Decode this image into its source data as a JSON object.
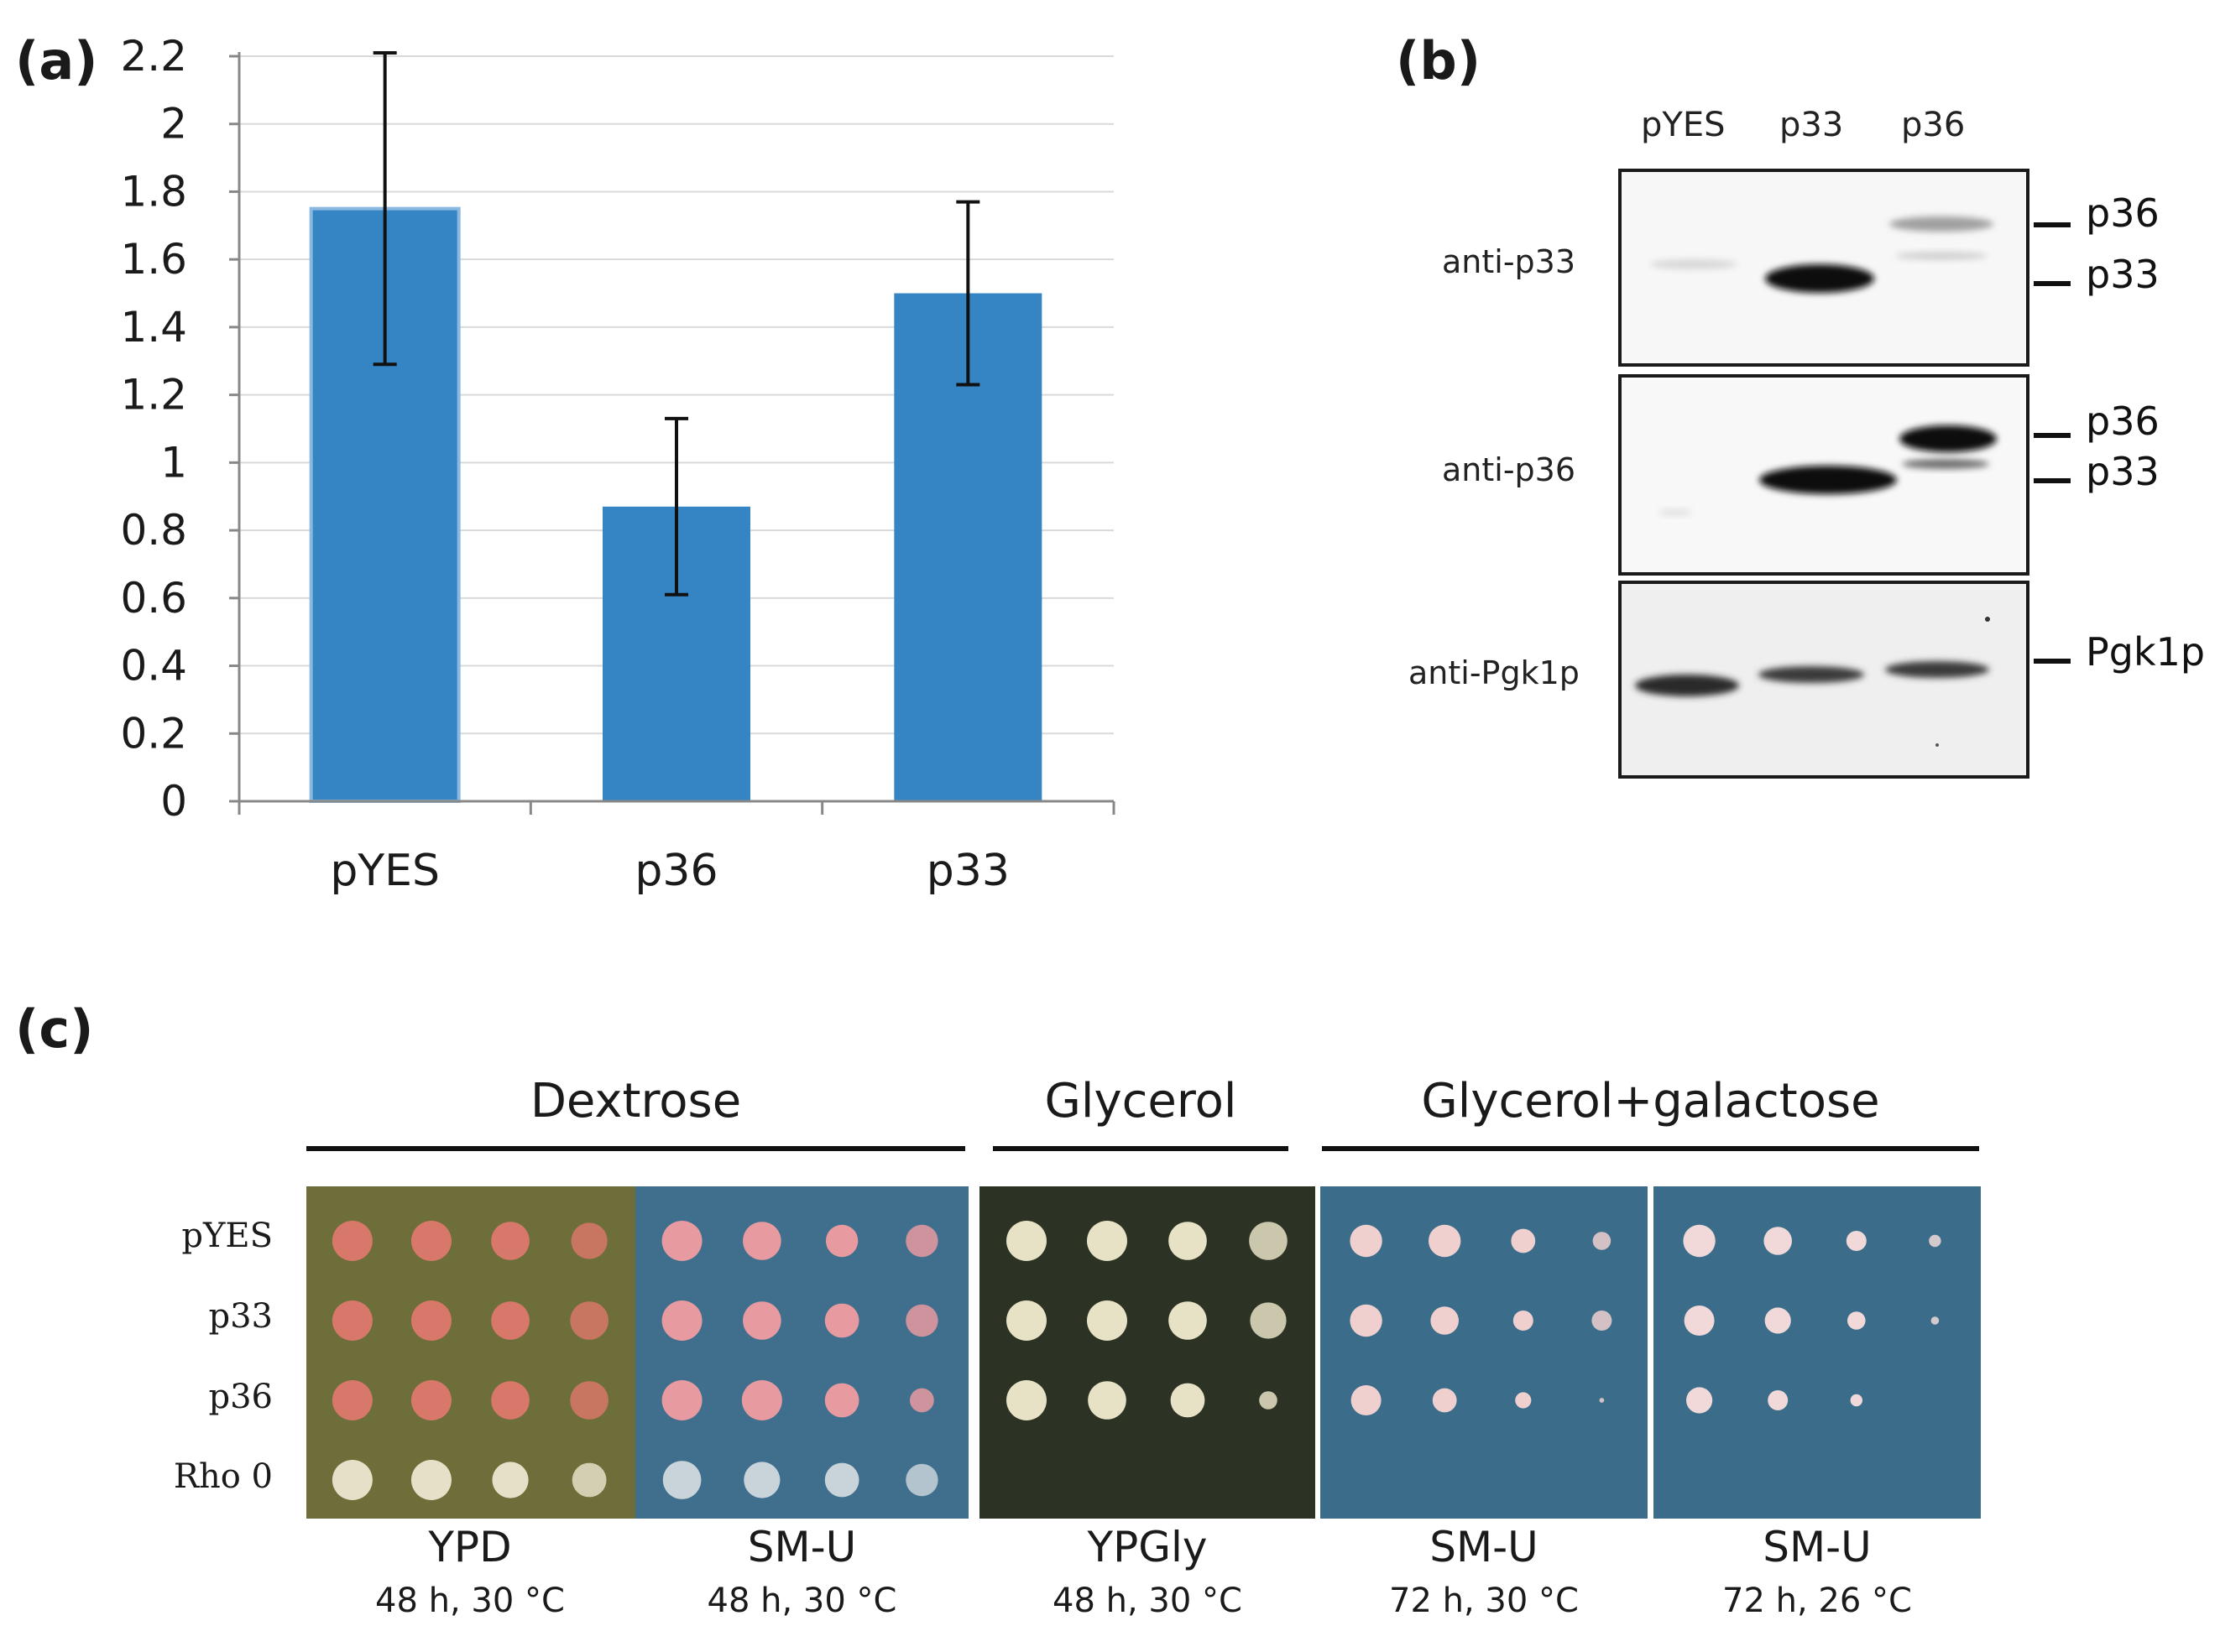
{
  "panel_labels": {
    "a": "(a)",
    "b": "(b)",
    "c": "(c)"
  },
  "chart_data": {
    "type": "bar",
    "title": "",
    "xlabel": "",
    "ylabel": "",
    "categories": [
      "pYES",
      "p36",
      "p33"
    ],
    "values": [
      1.75,
      0.87,
      1.5
    ],
    "error_low": [
      1.29,
      0.61,
      1.23
    ],
    "error_high": [
      2.21,
      1.13,
      1.77
    ],
    "ylim": [
      0,
      2.2
    ],
    "yticks": [
      "0",
      "0.2",
      "0.4",
      "0.6",
      "0.8",
      "1",
      "1.2",
      "1.4",
      "1.6",
      "1.8",
      "2",
      "2.2"
    ],
    "ytick_values": [
      0,
      0.2,
      0.4,
      0.6,
      0.8,
      1.0,
      1.2,
      1.4,
      1.6,
      1.8,
      2.0,
      2.2
    ],
    "grid": true,
    "bar_color": "#3585c5",
    "legend": "none"
  },
  "western": {
    "lanes": [
      "pYES",
      "p33",
      "p36"
    ],
    "blots": [
      {
        "antibody": "anti-p33",
        "markers": [
          "p36",
          "p33"
        ]
      },
      {
        "antibody": "anti-p36",
        "markers": [
          "p36",
          "p33"
        ]
      },
      {
        "antibody": "anti-Pgk1p",
        "markers": [
          "Pgk1p"
        ]
      }
    ]
  },
  "plates": {
    "groups": [
      "Dextrose",
      "Glycerol",
      "Glycerol+galactose"
    ],
    "rows": [
      "pYES",
      "p33",
      "p36",
      "Rho 0"
    ],
    "items": [
      {
        "medium": "YPD",
        "condition": "48 h, 30 °C",
        "bg": "#6d6e3a",
        "colony": "#d8786a"
      },
      {
        "medium": "SM-U",
        "condition": "48 h, 30 °C",
        "bg": "#3f6f8c",
        "colony": "#e79aa0"
      },
      {
        "medium": "YPGly",
        "condition": "48 h, 30 °C",
        "bg": "#2c3324",
        "colony": "#e7e2c5"
      },
      {
        "medium": "SM-U",
        "condition": "72 h, 30 °C",
        "bg": "#3b6c8a",
        "colony": "#f0d0cf"
      },
      {
        "medium": "SM-U",
        "condition": "72 h, 26 °C",
        "bg": "#3b6c8a",
        "colony": "#f0d9d8"
      }
    ]
  }
}
